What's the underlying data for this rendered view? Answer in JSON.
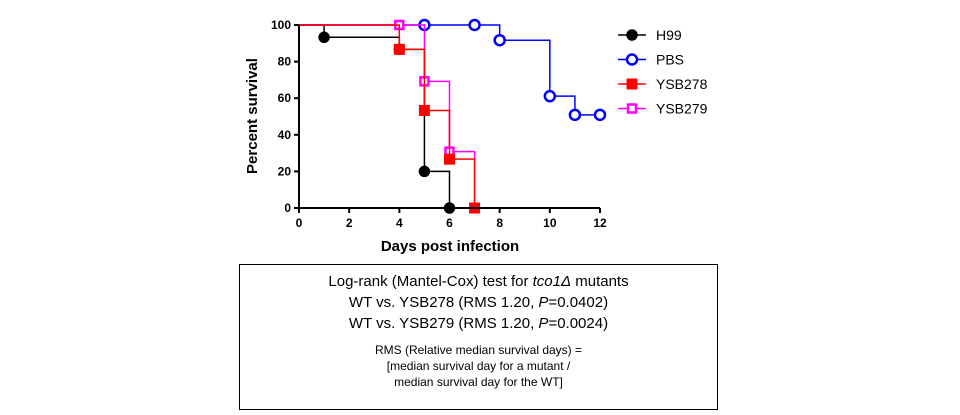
{
  "chart_data": {
    "type": "line",
    "title": "",
    "xlabel": "Days post infection",
    "ylabel": "Percent survival",
    "xlim": [
      0,
      12
    ],
    "ylim": [
      0,
      100
    ],
    "xticks": [
      0,
      2,
      4,
      6,
      8,
      10,
      12
    ],
    "yticks": [
      0,
      20,
      40,
      60,
      80,
      100
    ],
    "step": true,
    "grid": false,
    "legend_position": "right",
    "series": [
      {
        "name": "H99",
        "color": "#000000",
        "marker": "circle-filled",
        "x": [
          0,
          1,
          4,
          5,
          6
        ],
        "y": [
          100,
          93.3,
          86.7,
          20,
          0
        ],
        "markers_x": [
          1,
          4,
          5,
          6
        ],
        "markers_y": [
          93.3,
          86.7,
          20,
          0
        ]
      },
      {
        "name": "PBS",
        "color": "#0000ff",
        "marker": "circle-open",
        "x": [
          0,
          8,
          10,
          11,
          12
        ],
        "y": [
          100,
          91.7,
          61.1,
          50.9,
          50.9
        ],
        "markers_x": [
          5,
          7,
          8,
          10,
          11,
          12
        ],
        "markers_y": [
          100,
          100,
          91.7,
          61.1,
          50.9,
          50.9
        ]
      },
      {
        "name": "YSB278",
        "color": "#ff0000",
        "marker": "square-filled",
        "x": [
          0,
          4,
          5,
          6,
          7
        ],
        "y": [
          100,
          86.7,
          53.3,
          26.7,
          0
        ],
        "markers_x": [
          4,
          5,
          6,
          7
        ],
        "markers_y": [
          86.7,
          53.3,
          26.7,
          0
        ]
      },
      {
        "name": "YSB279",
        "color": "#ff00ff",
        "marker": "square-open",
        "x": [
          0,
          4,
          5,
          6,
          7
        ],
        "y": [
          100,
          100,
          69.2,
          30.8,
          0
        ],
        "markers_x": [
          4,
          5,
          6,
          7
        ],
        "markers_y": [
          100,
          69.2,
          30.8,
          0
        ]
      }
    ]
  },
  "stats_box": {
    "line1_prefix": "Log-rank (Mantel-Cox) test for ",
    "line1_gene": "tco1Δ",
    "line1_suffix": " mutants",
    "line2_prefix": "WT vs. YSB278 (RMS 1.20, ",
    "line2_p": "P",
    "line2_suffix": "=0.0402)",
    "line3_prefix": "WT vs. YSB279 (RMS 1.20, ",
    "line3_p": "P",
    "line3_suffix": "=0.0024)",
    "note1": "RMS (Relative median survival days) =",
    "note2": "[median survival day for a mutant  /",
    "note3": "median survival day for the WT]"
  }
}
